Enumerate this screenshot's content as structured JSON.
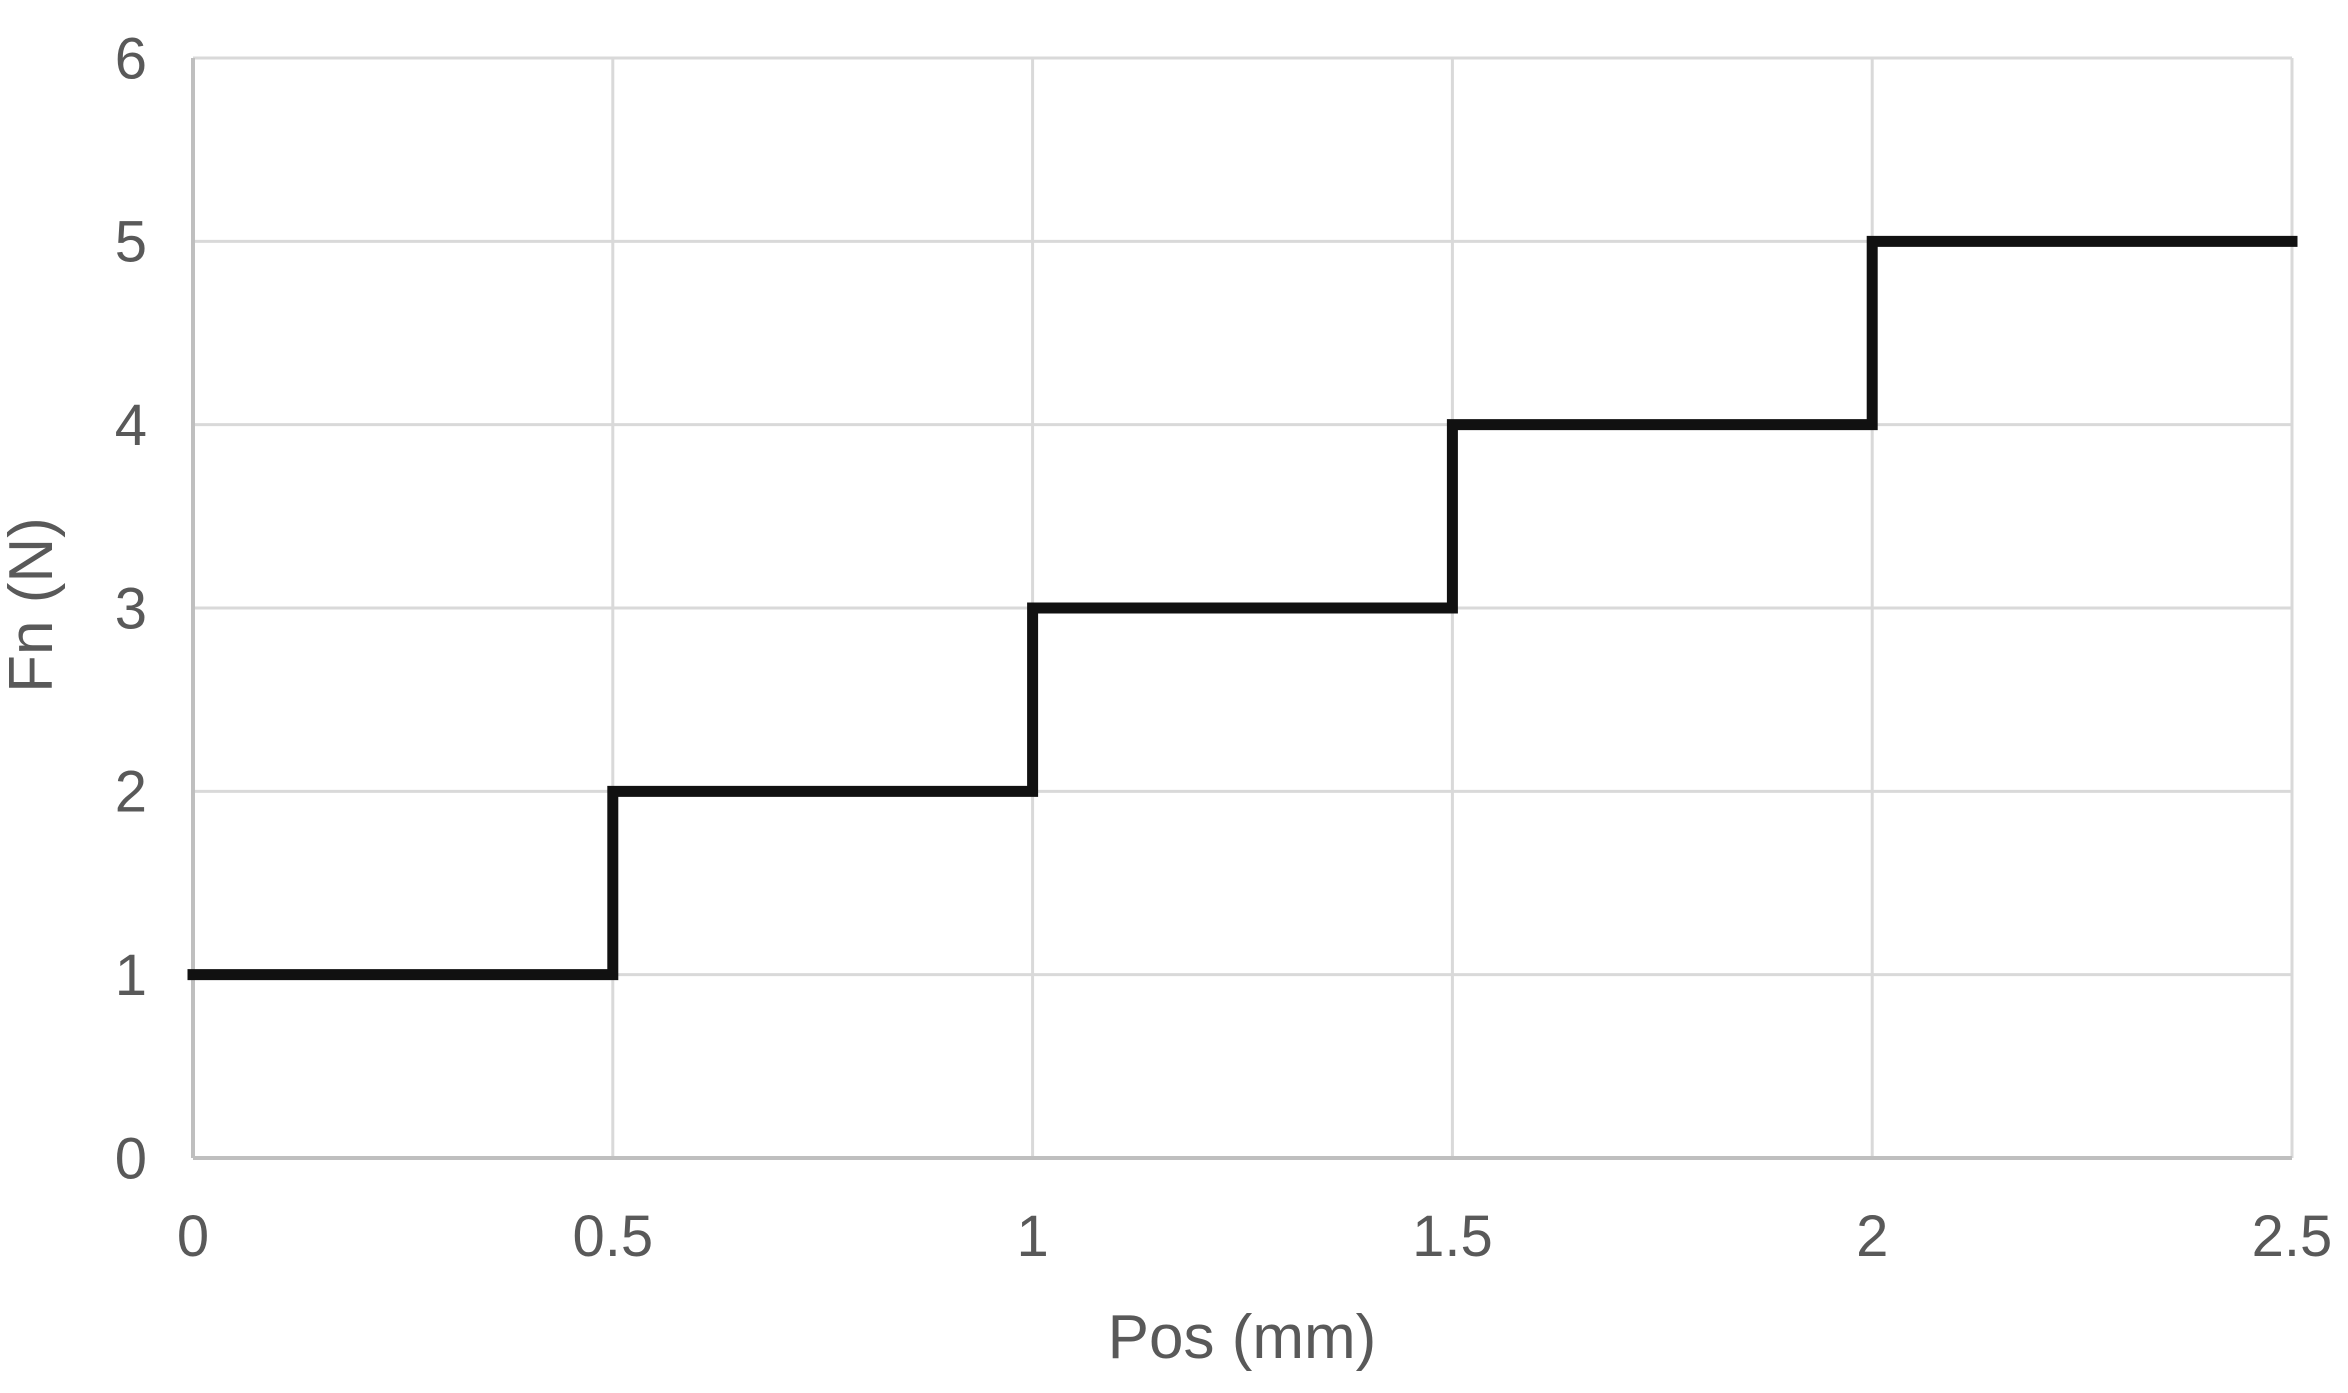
{
  "chart_data": {
    "type": "line",
    "subtype": "step",
    "title": "",
    "xlabel": "Pos (mm)",
    "ylabel": "Fn (N)",
    "xlim": [
      0,
      2.5
    ],
    "ylim": [
      0,
      6
    ],
    "grid": true,
    "legend": false,
    "x_ticks": [
      {
        "label": "0",
        "value": 0
      },
      {
        "label": "0.5",
        "value": 0.5
      },
      {
        "label": "1",
        "value": 1
      },
      {
        "label": "1.5",
        "value": 1.5
      },
      {
        "label": "2",
        "value": 2
      },
      {
        "label": "2.5",
        "value": 2.5
      }
    ],
    "y_ticks": [
      {
        "label": "0",
        "value": 0
      },
      {
        "label": "1",
        "value": 1
      },
      {
        "label": "2",
        "value": 2
      },
      {
        "label": "3",
        "value": 3
      },
      {
        "label": "4",
        "value": 4
      },
      {
        "label": "5",
        "value": 5
      },
      {
        "label": "6",
        "value": 6
      }
    ],
    "series": [
      {
        "name": "Fn",
        "points": [
          [
            0,
            1
          ],
          [
            0.5,
            1
          ],
          [
            0.5,
            2
          ],
          [
            1,
            2
          ],
          [
            1,
            3
          ],
          [
            1.5,
            3
          ],
          [
            1.5,
            4
          ],
          [
            2,
            4
          ],
          [
            2,
            5
          ],
          [
            2.5,
            5
          ]
        ]
      }
    ],
    "colors": {
      "series_line": "#111111",
      "gridline": "#d9d9d9",
      "axis_line": "#bfbfbf",
      "label_text": "#595959"
    }
  }
}
